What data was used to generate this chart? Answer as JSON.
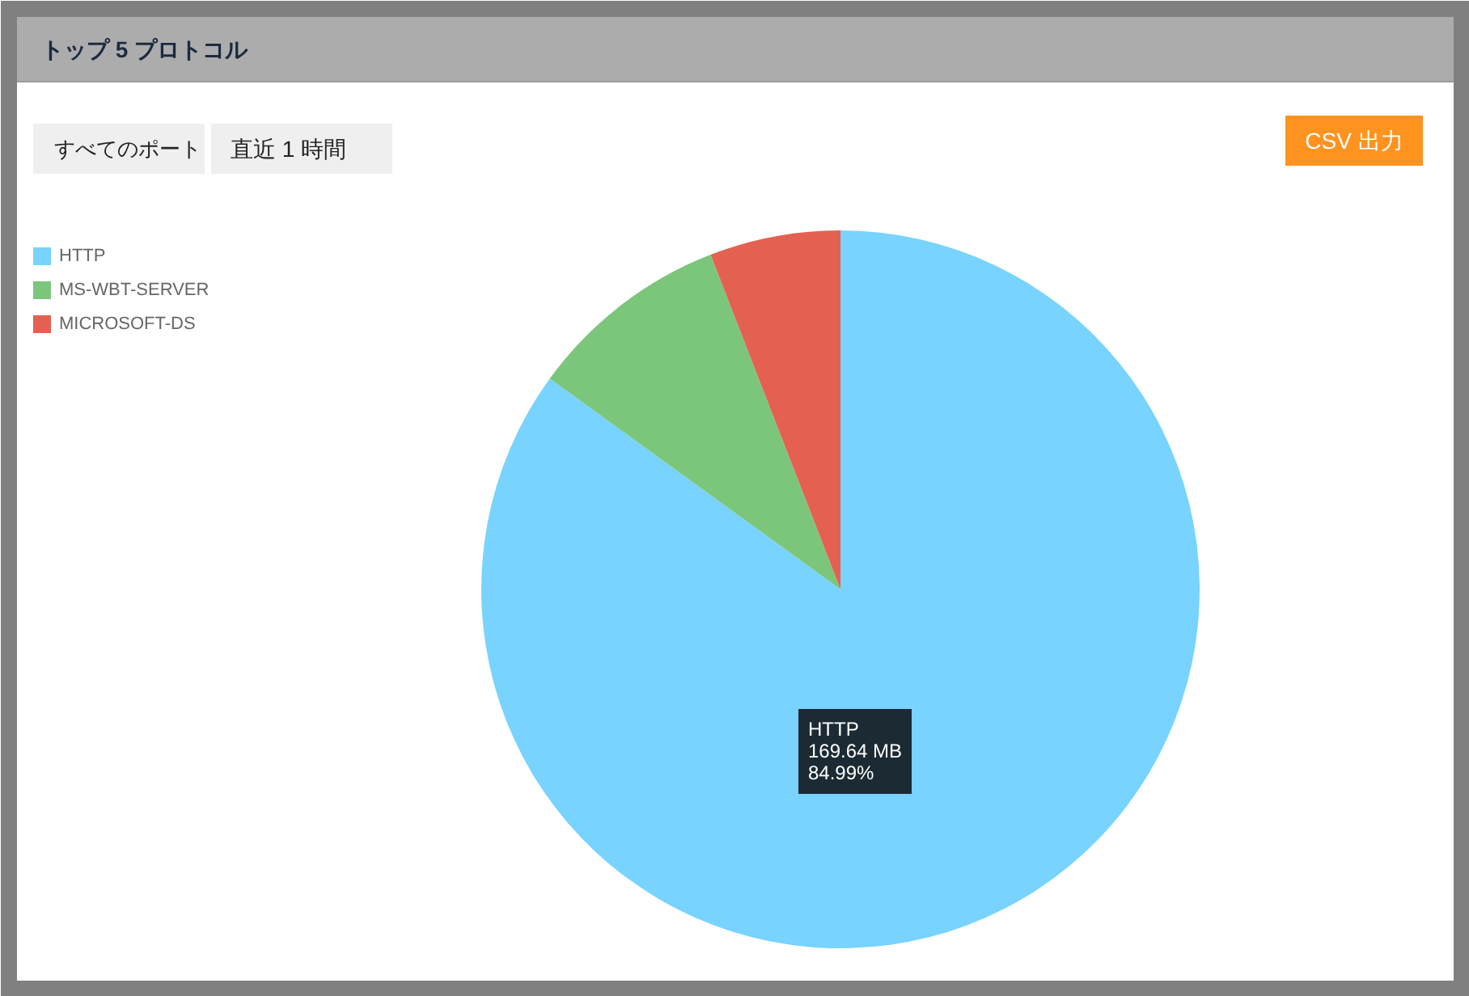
{
  "chart_data": {
    "type": "pie",
    "title": "トップ 5 プロトコル",
    "categories": [
      "HTTP",
      "MS-WBT-SERVER",
      "MICROSOFT-DS"
    ],
    "values": [
      84.99,
      9.12,
      5.89
    ],
    "colors": [
      "#78d3fe",
      "#7cc67c",
      "#e46151"
    ],
    "value_labels": [
      "HTTP\n169.64 MB\n84.99%",
      null,
      null
    ],
    "legend": "top left",
    "annotations": [
      "すべてのポート",
      "直近 1 時間",
      "CSV 出力"
    ]
  }
}
